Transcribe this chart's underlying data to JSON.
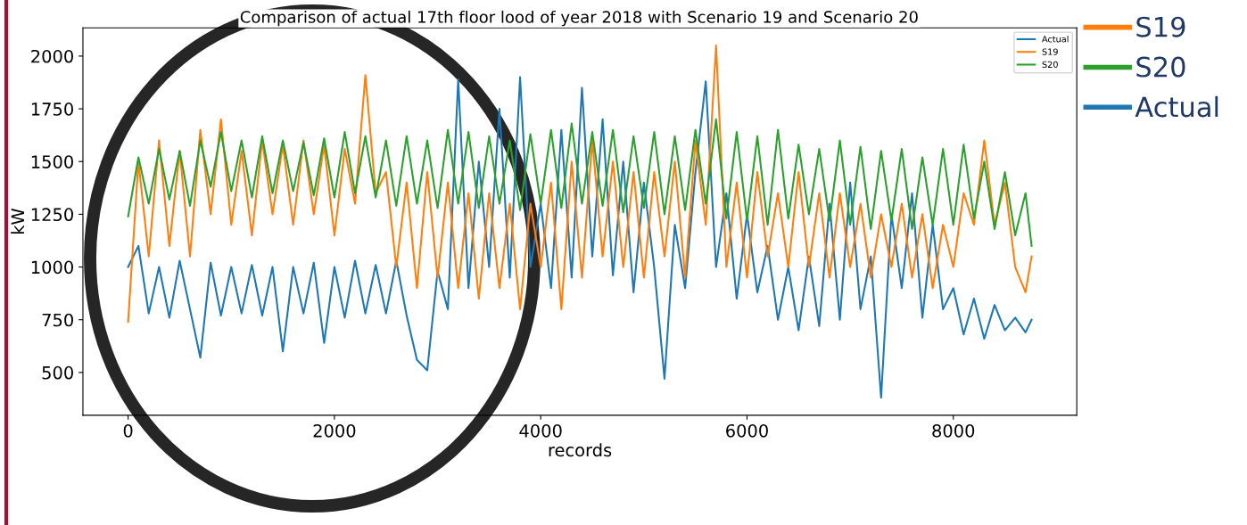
{
  "chart_data": {
    "type": "line",
    "title": "Comparison of actual 17th floor lood of year 2018 with Scenario 19 and Scenario 20",
    "xlabel": "records",
    "ylabel": "kW",
    "x": [
      0,
      100,
      200,
      300,
      400,
      500,
      600,
      700,
      800,
      900,
      1000,
      1100,
      1200,
      1300,
      1400,
      1500,
      1600,
      1700,
      1800,
      1900,
      2000,
      2100,
      2200,
      2300,
      2400,
      2500,
      2600,
      2700,
      2800,
      2900,
      3000,
      3100,
      3200,
      3300,
      3400,
      3500,
      3600,
      3700,
      3800,
      3900,
      4000,
      4100,
      4200,
      4300,
      4400,
      4500,
      4600,
      4700,
      4800,
      4900,
      5000,
      5100,
      5200,
      5300,
      5400,
      5500,
      5600,
      5700,
      5800,
      5900,
      6000,
      6100,
      6200,
      6300,
      6400,
      6500,
      6600,
      6700,
      6800,
      6900,
      7000,
      7100,
      7200,
      7300,
      7400,
      7500,
      7600,
      7700,
      7800,
      7900,
      8000,
      8100,
      8200,
      8300,
      8400,
      8500,
      8600,
      8700,
      8759
    ],
    "series": [
      {
        "name": "Actual",
        "color": "#1f77b4",
        "values": [
          1000,
          1100,
          780,
          1000,
          760,
          1030,
          800,
          570,
          1020,
          770,
          1000,
          780,
          1010,
          770,
          1000,
          600,
          1000,
          780,
          1020,
          640,
          1000,
          760,
          1030,
          780,
          1010,
          780,
          1030,
          770,
          560,
          510,
          980,
          800,
          1890,
          900,
          1500,
          1000,
          1750,
          950,
          1900,
          1000,
          1300,
          900,
          1650,
          950,
          1850,
          1050,
          1700,
          960,
          1500,
          880,
          1400,
          1000,
          470,
          1200,
          900,
          1450,
          1880,
          1000,
          1350,
          850,
          1250,
          880,
          1100,
          750,
          1000,
          700,
          1050,
          720,
          1300,
          750,
          1400,
          800,
          1050,
          380,
          1250,
          900,
          1350,
          760,
          1200,
          800,
          900,
          680,
          850,
          660,
          820,
          700,
          760,
          690,
          750
        ]
      },
      {
        "name": "S19",
        "color": "#ff7f0e",
        "values": [
          740,
          1500,
          1050,
          1600,
          1100,
          1550,
          1050,
          1650,
          1250,
          1700,
          1200,
          1550,
          1150,
          1600,
          1250,
          1580,
          1200,
          1600,
          1250,
          1580,
          1150,
          1560,
          1300,
          1910,
          1350,
          1450,
          1000,
          1400,
          900,
          1450,
          950,
          1400,
          900,
          1350,
          850,
          1350,
          900,
          1300,
          800,
          1300,
          1000,
          1400,
          800,
          1500,
          950,
          1600,
          1050,
          1500,
          1000,
          1450,
          950,
          1450,
          1050,
          1500,
          950,
          1600,
          1200,
          2050,
          1000,
          1400,
          950,
          1450,
          1050,
          1350,
          1000,
          1450,
          1000,
          1350,
          950,
          1350,
          1000,
          1300,
          950,
          1250,
          1000,
          1300,
          950,
          1250,
          900,
          1200,
          1000,
          1350,
          1200,
          1600,
          1200,
          1400,
          1000,
          880,
          1050
        ]
      },
      {
        "name": "S20",
        "color": "#2ca02c",
        "values": [
          1240,
          1520,
          1300,
          1560,
          1320,
          1550,
          1290,
          1600,
          1380,
          1640,
          1360,
          1600,
          1330,
          1620,
          1350,
          1600,
          1360,
          1590,
          1340,
          1610,
          1330,
          1640,
          1350,
          1620,
          1330,
          1600,
          1290,
          1620,
          1300,
          1600,
          1280,
          1650,
          1300,
          1640,
          1280,
          1620,
          1300,
          1600,
          1270,
          1630,
          1300,
          1650,
          1280,
          1680,
          1300,
          1640,
          1290,
          1650,
          1260,
          1620,
          1280,
          1640,
          1250,
          1620,
          1270,
          1650,
          1300,
          1700,
          1230,
          1640,
          1220,
          1620,
          1200,
          1650,
          1230,
          1580,
          1250,
          1560,
          1220,
          1600,
          1200,
          1570,
          1180,
          1550,
          1220,
          1560,
          1180,
          1520,
          1200,
          1560,
          1200,
          1580,
          1230,
          1500,
          1180,
          1450,
          1150,
          1350,
          1100
        ]
      }
    ],
    "xlim": [
      -438,
      9197
    ],
    "xticks": [
      0,
      2000,
      4000,
      6000,
      8000
    ],
    "ylim": [
      297,
      2134
    ],
    "yticks": [
      500,
      750,
      1000,
      1250,
      1500,
      1750,
      2000
    ],
    "legend": "top right",
    "grid": false
  }
}
